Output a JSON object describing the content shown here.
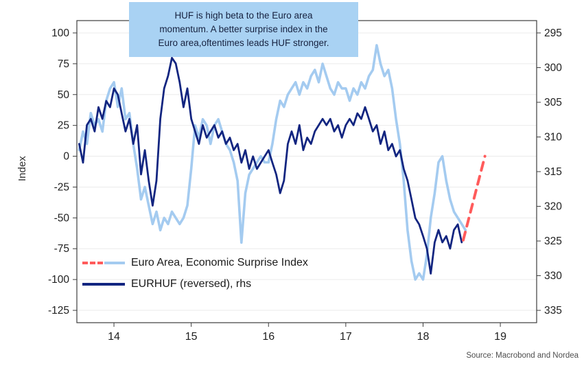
{
  "chart_data": {
    "type": "line",
    "ylabel_left": "Index",
    "x_ticks": [
      14,
      15,
      16,
      17,
      18,
      19
    ],
    "left_ticks": [
      100,
      75,
      50,
      25,
      0,
      -25,
      -50,
      -75,
      -100,
      -125
    ],
    "right_ticks": [
      295,
      300,
      305,
      310,
      315,
      320,
      325,
      330,
      335
    ],
    "xlim": [
      13.52,
      19.47
    ],
    "ylim_left": [
      -135,
      110
    ],
    "right_axis": {
      "reversed": true,
      "anchor_left_values": [
        100,
        -125
      ],
      "anchor_right_values": [
        295,
        335
      ]
    },
    "grid": true,
    "legend_position": "inside-bottom-left",
    "annotation": {
      "line1": "HUF is high beta to the Euro area",
      "line2": "momentum. A better surprise index in the",
      "line3": "Euro area,oftentimes leads HUF stronger.",
      "bg_color": "#a9d2f3"
    },
    "legend": [
      {
        "label": "Euro Area, Economic Surprise Index"
      },
      {
        "label": "EURHUF (reversed), rhs"
      }
    ],
    "colors": {
      "esi": "#a4cbf0",
      "eurhuf": "#122580",
      "esi_dashed": "#ff5b5b"
    },
    "series": [
      {
        "name": "Euro Area, Economic Surprise Index",
        "axis": "left",
        "color": "#a4cbf0",
        "style": "solid",
        "width": 3.6,
        "x": [
          13.55,
          13.6,
          13.65,
          13.7,
          13.75,
          13.8,
          13.85,
          13.9,
          13.95,
          14,
          14.05,
          14.1,
          14.15,
          14.2,
          14.25,
          14.3,
          14.35,
          14.4,
          14.45,
          14.5,
          14.55,
          14.6,
          14.65,
          14.7,
          14.75,
          14.8,
          14.85,
          14.9,
          14.95,
          15,
          15.05,
          15.1,
          15.15,
          15.2,
          15.25,
          15.3,
          15.35,
          15.4,
          15.45,
          15.5,
          15.55,
          15.6,
          15.65,
          15.7,
          15.75,
          15.8,
          15.85,
          15.9,
          15.95,
          16,
          16.05,
          16.1,
          16.15,
          16.2,
          16.25,
          16.3,
          16.35,
          16.4,
          16.45,
          16.5,
          16.55,
          16.6,
          16.65,
          16.7,
          16.75,
          16.8,
          16.85,
          16.9,
          16.95,
          17,
          17.05,
          17.1,
          17.15,
          17.2,
          17.25,
          17.3,
          17.35,
          17.4,
          17.45,
          17.5,
          17.55,
          17.6,
          17.65,
          17.7,
          17.75,
          17.8,
          17.85,
          17.9,
          17.95,
          18,
          18.05,
          18.1,
          18.15,
          18.2,
          18.25,
          18.3,
          18.35,
          18.4,
          18.45,
          18.5,
          18.55
        ],
        "y": [
          5,
          20,
          10,
          35,
          25,
          30,
          20,
          45,
          55,
          60,
          40,
          55,
          30,
          35,
          10,
          -10,
          -35,
          -25,
          -40,
          -55,
          -45,
          -60,
          -50,
          -55,
          -45,
          -50,
          -55,
          -50,
          -40,
          -10,
          25,
          15,
          30,
          25,
          10,
          25,
          30,
          20,
          10,
          5,
          -5,
          -20,
          -70,
          -30,
          -15,
          -10,
          -5,
          0,
          -5,
          -5,
          10,
          30,
          45,
          40,
          50,
          55,
          60,
          50,
          60,
          55,
          65,
          70,
          60,
          75,
          65,
          55,
          50,
          60,
          55,
          55,
          45,
          55,
          50,
          60,
          55,
          65,
          70,
          90,
          75,
          65,
          70,
          55,
          30,
          10,
          -20,
          -60,
          -85,
          -100,
          -95,
          -100,
          -80,
          -50,
          -30,
          -5,
          0,
          -20,
          -35,
          -45,
          -50,
          -55,
          -60
        ]
      },
      {
        "name": "EURHUF (reversed), rhs",
        "axis": "right",
        "color": "#122580",
        "style": "solid",
        "width": 2.8,
        "x": [
          13.55,
          13.6,
          13.65,
          13.7,
          13.75,
          13.8,
          13.85,
          13.9,
          13.95,
          14,
          14.05,
          14.1,
          14.15,
          14.2,
          14.25,
          14.3,
          14.35,
          14.4,
          14.45,
          14.5,
          14.55,
          14.6,
          14.65,
          14.7,
          14.75,
          14.8,
          14.85,
          14.9,
          14.95,
          15,
          15.05,
          15.1,
          15.15,
          15.2,
          15.25,
          15.3,
          15.35,
          15.4,
          15.45,
          15.5,
          15.55,
          15.6,
          15.65,
          15.7,
          15.75,
          15.8,
          15.85,
          15.9,
          15.95,
          16,
          16.05,
          16.1,
          16.15,
          16.2,
          16.25,
          16.3,
          16.35,
          16.4,
          16.45,
          16.5,
          16.55,
          16.6,
          16.65,
          16.7,
          16.75,
          16.8,
          16.85,
          16.9,
          16.95,
          17,
          17.05,
          17.1,
          17.15,
          17.2,
          17.25,
          17.3,
          17.35,
          17.4,
          17.45,
          17.5,
          17.55,
          17.6,
          17.65,
          17.7,
          17.75,
          17.8,
          17.85,
          17.9,
          17.95,
          18,
          18.05,
          18.1,
          18.15,
          18.2,
          18.25,
          18.3,
          18.35,
          18.4,
          18.45,
          18.5
        ],
        "y": [
          311.0,
          313.7,
          308.3,
          307.4,
          309.2,
          305.7,
          307.4,
          304.8,
          305.7,
          303.0,
          303.9,
          306.6,
          309.2,
          307.4,
          311.0,
          308.3,
          315.4,
          311.9,
          316.3,
          319.9,
          316.3,
          307.4,
          303.0,
          301.2,
          298.6,
          299.4,
          302.1,
          305.7,
          303.0,
          307.4,
          309.2,
          311.0,
          308.3,
          310.1,
          309.2,
          308.3,
          310.1,
          309.2,
          311.0,
          310.1,
          311.9,
          311.0,
          313.7,
          311.9,
          314.6,
          312.8,
          314.6,
          313.7,
          312.8,
          311.9,
          313.7,
          315.4,
          318.1,
          316.3,
          311.0,
          309.2,
          311.0,
          308.3,
          311.9,
          310.1,
          311.0,
          309.2,
          308.3,
          307.4,
          308.3,
          307.4,
          309.2,
          308.3,
          310.1,
          308.3,
          307.4,
          308.3,
          306.6,
          307.4,
          305.7,
          307.4,
          309.2,
          308.3,
          311.0,
          309.2,
          311.9,
          311.0,
          312.8,
          311.9,
          314.6,
          316.3,
          319.0,
          321.7,
          322.6,
          324.3,
          326.1,
          329.7,
          325.2,
          323.4,
          325.2,
          324.3,
          326.1,
          323.4,
          322.6,
          325.2
        ]
      },
      {
        "name": "Euro Area ESI dashed extension",
        "axis": "left",
        "color": "#ff5b5b",
        "style": "dashed",
        "width": 4,
        "x": [
          18.52,
          18.8
        ],
        "y": [
          -68,
          0
        ]
      }
    ],
    "source": "Source: Macrobond and Nordea"
  }
}
